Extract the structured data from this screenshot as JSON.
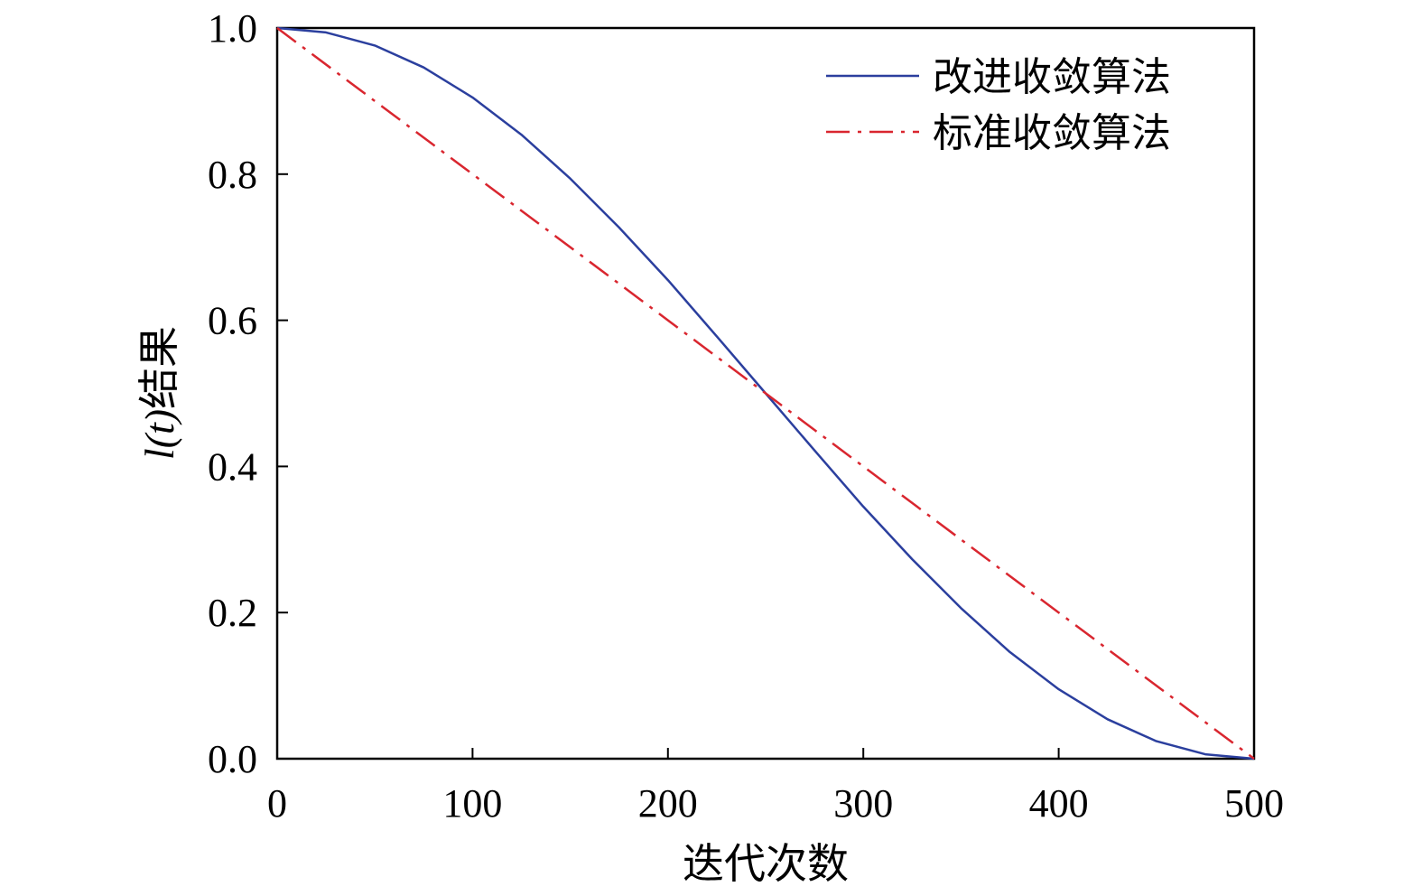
{
  "chart_data": {
    "type": "line",
    "xlabel": "迭代次数",
    "ylabel_var": "l(t)",
    "ylabel_suffix": "结果",
    "xlim": [
      0,
      500
    ],
    "ylim": [
      0,
      1
    ],
    "xticks": [
      0,
      100,
      200,
      300,
      400,
      500
    ],
    "yticks": [
      "0.0",
      "0.2",
      "0.4",
      "0.6",
      "0.8",
      "1.0"
    ],
    "grid": false,
    "legend_position": "top-right",
    "series": [
      {
        "name": "改进收敛算法",
        "color": "#2b3f9e",
        "style": "solid",
        "x": [
          0,
          25,
          50,
          75,
          100,
          125,
          150,
          175,
          200,
          225,
          250,
          275,
          300,
          325,
          350,
          375,
          400,
          425,
          450,
          475,
          500
        ],
        "y": [
          1.0,
          0.994,
          0.976,
          0.946,
          0.905,
          0.854,
          0.794,
          0.727,
          0.655,
          0.578,
          0.5,
          0.422,
          0.345,
          0.273,
          0.206,
          0.146,
          0.095,
          0.054,
          0.024,
          0.006,
          0.0
        ]
      },
      {
        "name": "标准收敛算法",
        "color": "#d9262f",
        "style": "dashdot",
        "x": [
          0,
          100,
          200,
          300,
          400,
          500
        ],
        "y": [
          1.0,
          0.8,
          0.6,
          0.4,
          0.2,
          0.0
        ]
      }
    ]
  }
}
